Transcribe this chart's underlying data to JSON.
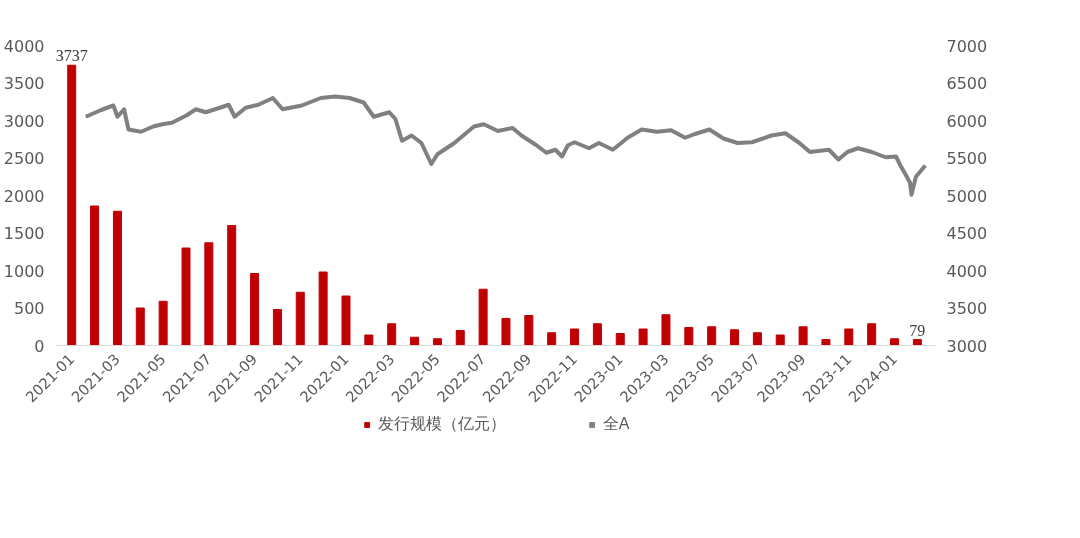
{
  "chart_data": {
    "type": "bar",
    "xlim": [
      "2020-12-10",
      "2024-02-24"
    ],
    "xticks": [
      "2021-01",
      "2021-03",
      "2021-05",
      "2021-07",
      "2021-09",
      "2021-11",
      "2022-01",
      "2022-03",
      "2022-05",
      "2022-07",
      "2022-09",
      "2022-11",
      "2023-01",
      "2023-03",
      "2023-05",
      "2023-07",
      "2023-09",
      "2023-11",
      "2024-01"
    ],
    "series": [
      {
        "name": "发行规模（亿元）",
        "color": "#c00000",
        "x": [
          "2021-01",
          "2021-02",
          "2021-03",
          "2021-04",
          "2021-05",
          "2021-06",
          "2021-07",
          "2021-08",
          "2021-09",
          "2021-10",
          "2021-11",
          "2021-12",
          "2022-01",
          "2022-02",
          "2022-03",
          "2022-04",
          "2022-05",
          "2022-06",
          "2022-07",
          "2022-08",
          "2022-09",
          "2022-10",
          "2022-11",
          "2022-12",
          "2023-01",
          "2023-02",
          "2023-03",
          "2023-04",
          "2023-05",
          "2023-06",
          "2023-07",
          "2023-08",
          "2023-09",
          "2023-10",
          "2023-11",
          "2023-12",
          "2024-01",
          "2024-02"
        ],
        "values": [
          3737,
          1860,
          1790,
          500,
          590,
          1300,
          1370,
          1600,
          960,
          480,
          710,
          980,
          660,
          140,
          290,
          110,
          90,
          200,
          750,
          360,
          400,
          170,
          220,
          290,
          160,
          220,
          410,
          240,
          250,
          210,
          170,
          140,
          250,
          80,
          220,
          290,
          90,
          79
        ],
        "value_labels": [
          "3737",
          null,
          null,
          null,
          null,
          null,
          null,
          null,
          null,
          null,
          null,
          null,
          null,
          null,
          null,
          null,
          null,
          null,
          null,
          null,
          null,
          null,
          null,
          null,
          null,
          null,
          null,
          null,
          null,
          null,
          null,
          null,
          null,
          null,
          null,
          null,
          null,
          "79"
        ]
      },
      {
        "name": "全A",
        "type": "line",
        "axis": "y2",
        "color": "#808080",
        "x": [
          "2021-01-20",
          "2021-02-09",
          "2021-02-24",
          "2021-03-01",
          "2021-03-10",
          "2021-03-16",
          "2021-04-02",
          "2021-04-18",
          "2021-04-30",
          "2021-05-13",
          "2021-06-02",
          "2021-06-14",
          "2021-06-27",
          "2021-07-16",
          "2021-07-28",
          "2021-08-05",
          "2021-08-20",
          "2021-09-06",
          "2021-09-25",
          "2021-10-08",
          "2021-11-03",
          "2021-11-28",
          "2021-12-17",
          "2022-01-06",
          "2022-01-25",
          "2022-02-07",
          "2022-02-26",
          "2022-03-06",
          "2022-03-15",
          "2022-03-28",
          "2022-04-10",
          "2022-04-23",
          "2022-05-01",
          "2022-05-24",
          "2022-06-19",
          "2022-07-02",
          "2022-07-21",
          "2022-08-10",
          "2022-08-22",
          "2022-09-11",
          "2022-09-24",
          "2022-10-06",
          "2022-10-15",
          "2022-10-23",
          "2022-11-01",
          "2022-11-20",
          "2022-12-03",
          "2022-12-22",
          "2023-01-11",
          "2023-01-30",
          "2023-02-18",
          "2023-03-08",
          "2023-03-27",
          "2023-04-09",
          "2023-04-28",
          "2023-05-17",
          "2023-06-05",
          "2023-06-24",
          "2023-07-20",
          "2023-08-08",
          "2023-08-27",
          "2023-09-10",
          "2023-10-05",
          "2023-10-18",
          "2023-10-30",
          "2023-11-13",
          "2023-12-01",
          "2023-12-20",
          "2024-01-03",
          "2024-01-09",
          "2024-01-16",
          "2024-01-22",
          "2024-01-24",
          "2024-01-30",
          "2024-02-11"
        ],
        "values": [
          6050,
          6140,
          6200,
          6050,
          6150,
          5880,
          5850,
          5920,
          5950,
          5970,
          6070,
          6150,
          6110,
          6170,
          6210,
          6050,
          6170,
          6210,
          6300,
          6150,
          6200,
          6300,
          6320,
          6300,
          6240,
          6050,
          6110,
          6020,
          5730,
          5800,
          5700,
          5420,
          5550,
          5700,
          5920,
          5950,
          5860,
          5900,
          5800,
          5670,
          5570,
          5610,
          5520,
          5670,
          5710,
          5630,
          5700,
          5610,
          5770,
          5880,
          5850,
          5870,
          5770,
          5820,
          5880,
          5760,
          5700,
          5710,
          5800,
          5830,
          5700,
          5580,
          5610,
          5480,
          5580,
          5630,
          5580,
          5510,
          5520,
          5400,
          5280,
          5170,
          5010,
          5250,
          5400
        ]
      }
    ],
    "ylim": [
      0,
      4000
    ],
    "yticks": [
      0,
      500,
      1000,
      1500,
      2000,
      2500,
      3000,
      3500,
      4000
    ],
    "y2lim": [
      3000,
      7000
    ],
    "y2ticks": [
      3000,
      3500,
      4000,
      4500,
      5000,
      5500,
      6000,
      6500,
      7000
    ],
    "grid": false,
    "legend": "bottom"
  }
}
